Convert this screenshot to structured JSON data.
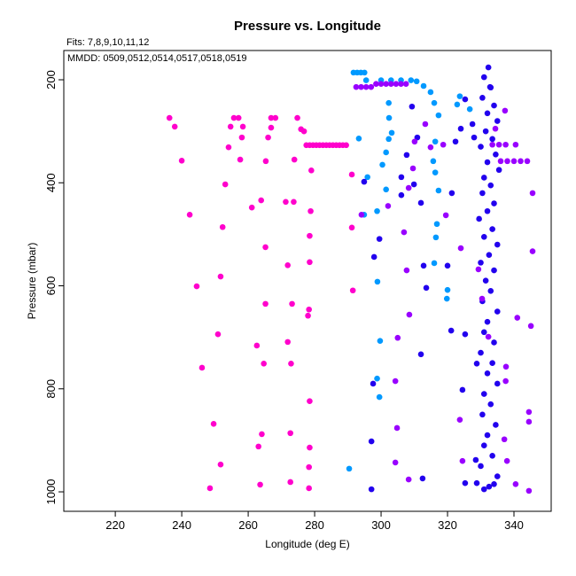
{
  "chart_data": {
    "type": "scatter",
    "title": "Pressure vs. Longitude",
    "subtitle": "Fits: 7,8,9,10,11,12",
    "annotation": "MMDD: 0509,0512,0514,0517,0518,0519",
    "x_label": "Longitude (deg E)",
    "y_label": "Pressure (mbar)",
    "xlim": [
      204.5,
      351.2
    ],
    "ylim": [
      1037.8,
      143.2
    ],
    "xticks": [
      220,
      240,
      260,
      280,
      300,
      320,
      340
    ],
    "yticks": [
      200,
      400,
      600,
      800,
      1000
    ],
    "series": [
      {
        "color": "#ff00cc",
        "x": [
          236.3,
          237.9,
          240,
          242.4,
          244.5,
          246.1,
          249.6,
          248.5,
          251.7,
          250.9,
          251.7,
          252.3,
          253.1,
          254.1,
          254.7,
          255.7,
          257.1,
          258.4,
          258.1,
          257.6,
          261.1,
          262.6,
          264.7,
          264.1,
          263.6,
          263.1,
          265.2,
          265.2,
          263.9,
          265.3,
          266,
          266.9,
          268.2,
          266.9,
          271.3,
          273.7,
          271.9,
          273.2,
          271.9,
          272.9,
          272.7,
          272.7,
          274.8,
          275.9,
          273.9,
          276.8,
          279,
          278.8,
          278.5,
          278.5,
          278.3,
          278,
          278.5,
          278.5,
          278.3,
          278.3,
          277.5,
          278.5,
          279.5,
          280.5,
          281.5,
          282.5,
          283.5,
          284.5,
          285.5,
          286.5,
          287.5,
          288.5,
          289.5,
          291.2,
          291.2,
          291.5
        ],
        "y": [
          274,
          291,
          357,
          462,
          601,
          759,
          868,
          993,
          947,
          694,
          582,
          486,
          403,
          331,
          291,
          274,
          274,
          291,
          312,
          355,
          448,
          716,
          751,
          888,
          986,
          912,
          635,
          525,
          434,
          358,
          312,
          274,
          274,
          293,
          437,
          437,
          560,
          635,
          709,
          751,
          886,
          981,
          274,
          296,
          355,
          300,
          376,
          455,
          503,
          554,
          646,
          658,
          824,
          914,
          952,
          993,
          327,
          327,
          327,
          327,
          327,
          327,
          327,
          327,
          327,
          327,
          327,
          327,
          327,
          384,
          487,
          609
        ]
      },
      {
        "color": "#0099ff",
        "x": [
          290.4,
          291.7,
          292.8,
          293.9,
          295,
          293.3,
          295.9,
          294.9,
          298.8,
          301.5,
          300.4,
          301.5,
          302.3,
          303.2,
          302.4,
          302.3,
          298.9,
          299.7,
          299.5,
          298.8,
          295.5,
          300,
          303,
          306,
          309,
          310.7,
          312.8,
          314.9,
          316,
          317.3,
          316.3,
          315.7,
          316.3,
          317.3,
          316.8,
          316.5,
          316,
          320,
          319.8,
          322.9,
          323.7,
          326.7
        ],
        "y": [
          955,
          186,
          186,
          186,
          186,
          314,
          389,
          462,
          455,
          413,
          365,
          341,
          315,
          303,
          274,
          245,
          592,
          707,
          816,
          780,
          201,
          201,
          201,
          201,
          201,
          203,
          212,
          224,
          245,
          269,
          320,
          358,
          380,
          415,
          480,
          506,
          556,
          608,
          625,
          248,
          232,
          257
        ]
      },
      {
        "color": "#2200ee",
        "x": [
          294.9,
          297.6,
          297.1,
          297.1,
          297.9,
          299.5,
          306.1,
          306.1,
          307.7,
          309.3,
          310.9,
          309.9,
          312,
          312.8,
          313.6,
          312,
          312.5,
          321.3,
          322.4,
          321.1,
          320,
          325.3,
          324.5,
          325.3,
          324,
          325.3,
          327.5,
          328,
          328.8,
          328.8,
          328.5,
          332.8,
          332.3,
          331,
          333,
          330.5,
          334,
          332,
          335,
          331.5,
          333.5,
          330,
          334.5,
          332,
          335.5,
          331,
          333,
          330.5,
          334,
          332,
          329.5,
          333.5,
          331,
          335,
          332.5,
          330,
          334,
          331.5,
          333,
          330.5,
          335,
          332,
          331,
          334,
          330,
          333.5,
          332,
          335,
          331,
          333,
          330.5,
          334.5,
          332,
          331,
          333.5,
          330,
          335,
          332.5,
          331,
          334
        ],
        "y": [
          398,
          790,
          902,
          995,
          544,
          509,
          389,
          424,
          346,
          252,
          312,
          403,
          439,
          561,
          604,
          733,
          974,
          420,
          320,
          687,
          561,
          694,
          802,
          983,
          295,
          238,
          286,
          312,
          751,
          983,
          938,
          214,
          176,
          195,
          215,
          235,
          250,
          265,
          280,
          300,
          315,
          330,
          345,
          360,
          375,
          390,
          405,
          420,
          440,
          455,
          470,
          490,
          505,
          520,
          540,
          555,
          570,
          590,
          610,
          630,
          650,
          670,
          690,
          710,
          730,
          750,
          770,
          790,
          810,
          830,
          850,
          870,
          890,
          910,
          930,
          950,
          970,
          990,
          995,
          985
        ]
      },
      {
        "color": "#9900ff",
        "x": [
          292.5,
          294,
          295.5,
          297,
          298.5,
          300,
          301.5,
          303,
          304.5,
          306,
          307.5,
          294.1,
          302.1,
          306.9,
          307.7,
          308.5,
          305,
          304.3,
          304.8,
          304.3,
          308.3,
          308.3,
          309.6,
          314.9,
          318.7,
          319.5,
          324,
          323.7,
          324.5,
          329.3,
          330.4,
          332.3,
          337.6,
          337.1,
          341,
          345.6,
          345.6,
          344.5,
          344.5,
          344.5,
          345.1,
          336,
          338,
          340,
          342,
          344,
          337.3,
          334.4,
          333.5,
          335.5,
          337.5,
          340.5,
          310.1,
          313.3,
          337.9,
          340.5,
          337.5
        ],
        "y": [
          214,
          214,
          214,
          214,
          208,
          208,
          208,
          208,
          208,
          208,
          208,
          462,
          445,
          496,
          570,
          656,
          701,
          785,
          876,
          943,
          976,
          410,
          372,
          331,
          326,
          463,
          527,
          860,
          940,
          568,
          625,
          699,
          757,
          898,
          662,
          533,
          420,
          845,
          998,
          864,
          678,
          358,
          358,
          358,
          358,
          358,
          260,
          295,
          326,
          326,
          326,
          326,
          320,
          286,
          940,
          985,
          785
        ]
      }
    ]
  }
}
